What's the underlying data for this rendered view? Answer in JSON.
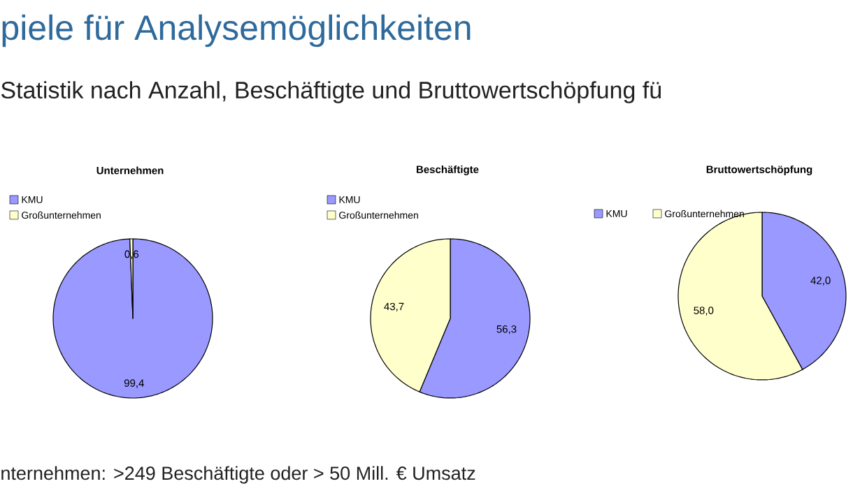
{
  "chart_data": [
    {
      "type": "other",
      "title": "piele für Analysemöglichkeiten",
      "subtitle": "Statistik nach Anzahl, Beschäftigte und Bruttowertschöpfung fü",
      "annotations": [
        "nternehmen: >249 Beschäftigte oder > 50 Mill. € Umsatz"
      ]
    },
    {
      "type": "pie",
      "title": "Unternehmen",
      "categories": [
        "KMU",
        "Großunternehmen"
      ],
      "values": [
        99.4,
        0.6
      ],
      "value_labels": [
        "99,4",
        "0,6"
      ],
      "colors": [
        "#9999ff",
        "#ffffcc"
      ],
      "legend": "top left"
    },
    {
      "type": "pie",
      "title": "Beschäftigte",
      "categories": [
        "KMU",
        "Großunternehmen"
      ],
      "values": [
        56.3,
        43.7
      ],
      "value_labels": [
        "56,3",
        "43,7"
      ],
      "colors": [
        "#9999ff",
        "#ffffcc"
      ],
      "legend": "top left"
    },
    {
      "type": "pie",
      "title": "Bruttowertschöpfung",
      "categories": [
        "KMU",
        "Großunternehmen"
      ],
      "values": [
        42.0,
        58.0
      ],
      "value_labels": [
        "42,0",
        "58,0"
      ],
      "colors": [
        "#9999ff",
        "#ffffcc"
      ],
      "legend": "top"
    }
  ]
}
